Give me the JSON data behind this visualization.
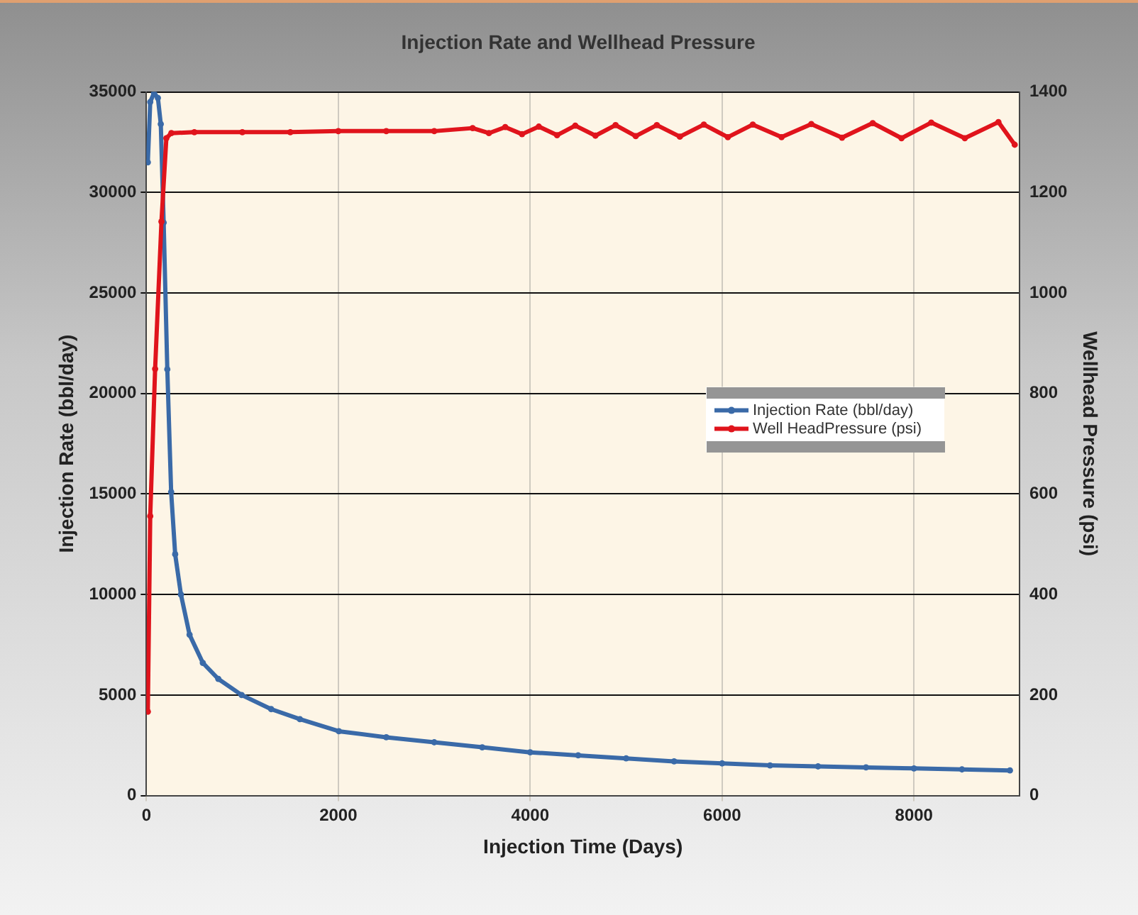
{
  "chart_data": {
    "type": "line",
    "title": "Injection Rate and Wellhead Pressure",
    "xlabel": "Injection Time (Days)",
    "ylabel": "Injection Rate (bbl/day)",
    "y2label": "Wellhead Pressure (psi)",
    "xlim": [
      0,
      9100
    ],
    "xticks": [
      0,
      2000,
      4000,
      6000,
      8000
    ],
    "ylim": [
      0,
      35000
    ],
    "yticks": [
      0,
      5000,
      10000,
      15000,
      20000,
      25000,
      30000,
      35000
    ],
    "y2lim": [
      0,
      1400
    ],
    "y2ticks": [
      0,
      200,
      400,
      600,
      800,
      1000,
      1200,
      1400
    ],
    "grid": true,
    "legend": "right",
    "marker": "circle",
    "line_style": "solid",
    "series": [
      {
        "name": "Injection Rate (bbl/day)",
        "color": "#3a6aa8",
        "x": [
          15,
          40,
          80,
          120,
          150,
          180,
          218,
          258,
          300,
          360,
          450,
          588,
          750,
          993,
          1300,
          1600,
          2006,
          2500,
          3000,
          3500,
          4000,
          4500,
          5000,
          5500,
          6000,
          6500,
          7000,
          7500,
          8000,
          8500,
          9000
        ],
        "values": [
          31500,
          34500,
          34950,
          34700,
          33400,
          28500,
          21200,
          15100,
          12000,
          10000,
          8000,
          6600,
          5800,
          5000,
          4300,
          3800,
          3200,
          2900,
          2650,
          2400,
          2150,
          2000,
          1850,
          1700,
          1600,
          1500,
          1450,
          1400,
          1350,
          1300,
          1250
        ]
      },
      {
        "name": "Well HeadPressure (psi)",
        "color": "#e0141c",
        "axis": "y2",
        "x": [
          15,
          40,
          91,
          157,
          208,
          260,
          500,
          1000,
          1500,
          2000,
          2500,
          3000,
          3400,
          3570,
          3740,
          3915,
          4090,
          4280,
          4470,
          4680,
          4890,
          5100,
          5320,
          5560,
          5810,
          6060,
          6320,
          6620,
          6930,
          7250,
          7570,
          7870,
          8180,
          8530,
          8880,
          9050
        ],
        "values": [
          167,
          556,
          849,
          1142,
          1308,
          1318,
          1320,
          1320,
          1320,
          1322,
          1322,
          1322,
          1328,
          1318,
          1330,
          1316,
          1331,
          1314,
          1333,
          1313,
          1334,
          1312,
          1334,
          1311,
          1335,
          1310,
          1335,
          1310,
          1336,
          1309,
          1338,
          1308,
          1339,
          1308,
          1340,
          1295
        ]
      }
    ]
  }
}
